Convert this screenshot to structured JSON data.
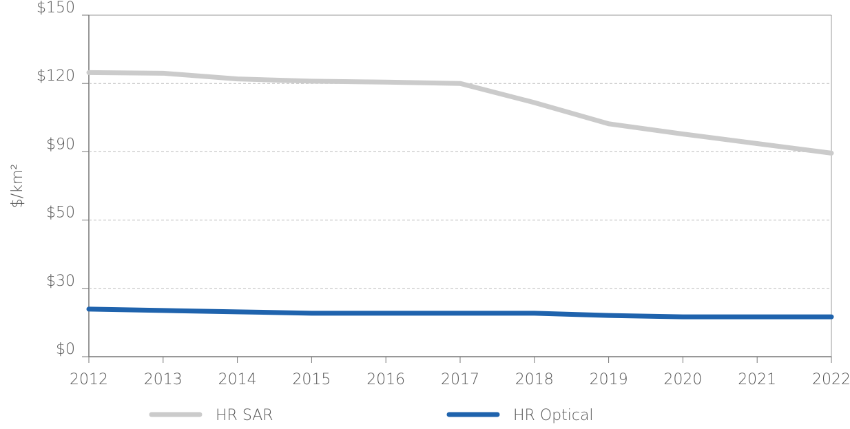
{
  "chart_data": {
    "type": "line",
    "ylabel": "$/km²",
    "x": [
      2012,
      2013,
      2014,
      2015,
      2016,
      2017,
      2018,
      2019,
      2020,
      2021,
      2022
    ],
    "xlim": [
      2012,
      2022
    ],
    "xticks": [
      2012,
      2013,
      2014,
      2015,
      2016,
      2017,
      2018,
      2019,
      2020,
      2021,
      2022
    ],
    "ylim": [
      0,
      150
    ],
    "yticks": [
      {
        "value": 0,
        "label": "$0"
      },
      {
        "value": 30,
        "label": "$30"
      },
      {
        "value": 50,
        "label": "$50"
      },
      {
        "value": 90,
        "label": "$90"
      },
      {
        "value": 120,
        "label": "$120"
      },
      {
        "value": 150,
        "label": "$150"
      }
    ],
    "grid": true,
    "legend": "bottom",
    "series": [
      {
        "name": "HR SAR",
        "color": "#cbcbcb",
        "values": [
          124.8,
          124.5,
          122,
          121,
          120.6,
          120,
          111.6,
          102.3,
          97.8,
          93.6,
          89.2
        ]
      },
      {
        "name": "HR Optical",
        "color": "#1f63ad",
        "values": [
          20.9,
          20.3,
          19.7,
          19.1,
          19.1,
          19.1,
          19.1,
          18.1,
          17.5,
          17.5,
          17.5
        ]
      }
    ]
  }
}
